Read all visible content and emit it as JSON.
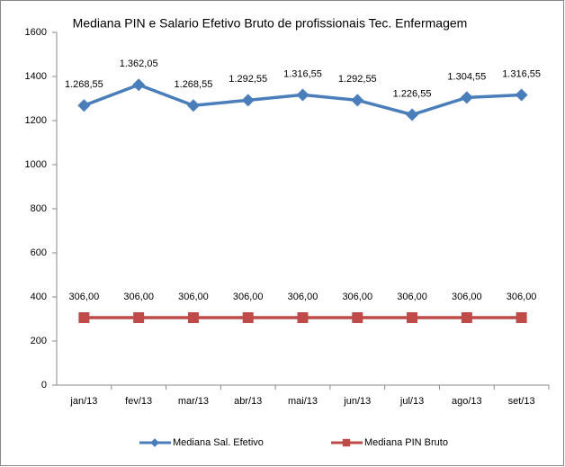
{
  "chart_data": {
    "type": "line",
    "title": "Mediana PIN e Salario  Efetivo Bruto de profissionais Tec. Enfermagem",
    "categories": [
      "jan/13",
      "fev/13",
      "mar/13",
      "abr/13",
      "mai/13",
      "jun/13",
      "jul/13",
      "ago/13",
      "set/13"
    ],
    "series": [
      {
        "name": "Mediana Sal. Efetivo",
        "color": "#4a7ebb",
        "marker": "diamond",
        "values": [
          1268.55,
          1362.05,
          1268.55,
          1292.55,
          1316.55,
          1292.55,
          1226.55,
          1304.55,
          1316.55
        ],
        "value_labels": [
          "1.268,55",
          "1.362,05",
          "1.268,55",
          "1.292,55",
          "1.316,55",
          "1.292,55",
          "1.226,55",
          "1.304,55",
          "1.316,55"
        ]
      },
      {
        "name": "Mediana PIN Bruto",
        "color": "#be4b48",
        "marker": "square",
        "values": [
          306,
          306,
          306,
          306,
          306,
          306,
          306,
          306,
          306
        ],
        "value_labels": [
          "306,00",
          "306,00",
          "306,00",
          "306,00",
          "306,00",
          "306,00",
          "306,00",
          "306,00",
          "306,00"
        ]
      }
    ],
    "ylim": [
      0,
      1600
    ],
    "yticks": [
      0,
      200,
      400,
      600,
      800,
      1000,
      1200,
      1400,
      1600
    ],
    "grid": false,
    "legend": "bottom"
  }
}
